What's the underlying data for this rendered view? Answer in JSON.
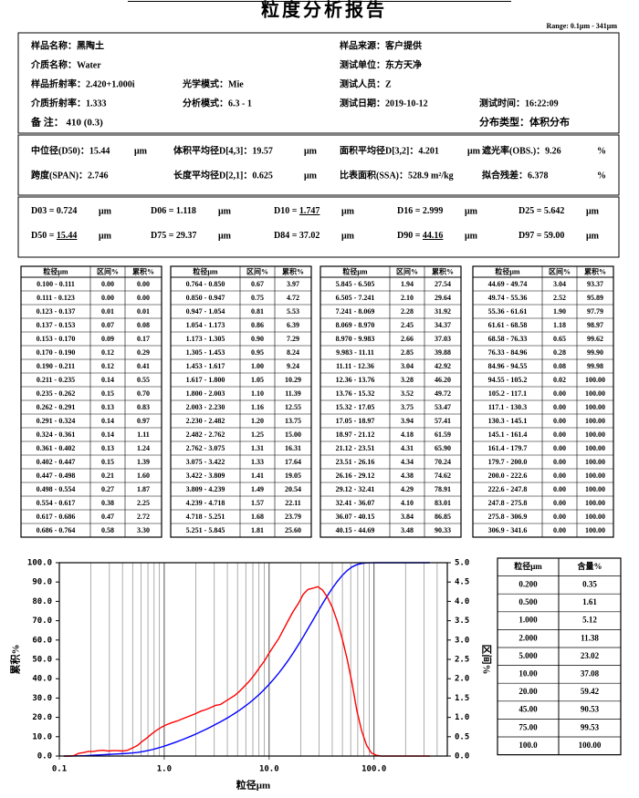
{
  "title": "粒度分析报告",
  "range": "Range: 0.1μm - 341μm",
  "info": {
    "rows": [
      [
        "样品名称：黑陶土",
        "样品来源：客户提供"
      ],
      [
        "介质名称：Water",
        "测试单位：东方天净"
      ],
      [
        "样品折射率：2.420+1.000i",
        "光学模式：Mie",
        "测试人员：Z"
      ],
      [
        "介质折射率：1.333",
        "分析模式：6.3 - 1",
        "测试日期：2019-10-12",
        "测试时间：16:22:09"
      ],
      [
        "备  注：  410 (0.3)",
        "分布类型：体积分布"
      ]
    ]
  },
  "stats": {
    "rows": [
      [
        {
          "text": "中位径(D50)：15.44",
          "unit": "μm"
        },
        {
          "text": "体积平均径D[4,3]：19.57",
          "unit": "μm"
        },
        {
          "text": "面积平均径D[3,2]：4.201",
          "unit": "μm"
        },
        {
          "text": "遮光率(OBS.)：9.26",
          "unit": "%"
        }
      ],
      [
        {
          "text": "跨度(SPAN)：2.746"
        },
        {
          "text": "长度平均径D[2,1]：0.625",
          "unit": "μm"
        },
        {
          "text": "比表面积(SSA)：528.9 m²/kg"
        },
        {
          "text": "拟合残差：6.378",
          "unit": "%"
        }
      ]
    ]
  },
  "d_values": {
    "rows": [
      [
        {
          "label": "D03 = ",
          "value": "0.724",
          "unit": "μm"
        },
        {
          "label": "D06 = ",
          "value": "1.118",
          "unit": "μm"
        },
        {
          "label": "D10 = ",
          "value": "1.747",
          "unit": "μm",
          "emphasis": true
        },
        {
          "label": "D16 = ",
          "value": "2.999",
          "unit": "μm"
        },
        {
          "label": "D25 = ",
          "value": "5.642",
          "unit": "μm"
        }
      ],
      [
        {
          "label": "D50 = ",
          "value": "15.44",
          "unit": "μm",
          "emphasis": true
        },
        {
          "label": "D75 = ",
          "value": "29.37",
          "unit": "μm"
        },
        {
          "label": "D84 = ",
          "value": "37.02",
          "unit": "μm"
        },
        {
          "label": "D90 = ",
          "value": "44.16",
          "unit": "μm",
          "emphasis": true
        },
        {
          "label": "D97 = ",
          "value": "59.00",
          "unit": "μm"
        }
      ]
    ]
  },
  "table": {
    "header": [
      "粒径μm",
      "区间%",
      "累积%"
    ],
    "groups": [
      [
        [
          "0.100 - 0.111",
          "0.00",
          "0.00"
        ],
        [
          "0.111 - 0.123",
          "0.00",
          "0.00"
        ],
        [
          "0.123 - 0.137",
          "0.01",
          "0.01"
        ],
        [
          "0.137 - 0.153",
          "0.07",
          "0.08"
        ],
        [
          "0.153 - 0.170",
          "0.09",
          "0.17"
        ],
        [
          "0.170 - 0.190",
          "0.12",
          "0.29"
        ],
        [
          "0.190 - 0.211",
          "0.12",
          "0.41"
        ],
        [
          "0.211 - 0.235",
          "0.14",
          "0.55"
        ],
        [
          "0.235 - 0.262",
          "0.15",
          "0.70"
        ],
        [
          "0.262 - 0.291",
          "0.13",
          "0.83"
        ],
        [
          "0.291 - 0.324",
          "0.14",
          "0.97"
        ],
        [
          "0.324 - 0.361",
          "0.14",
          "1.11"
        ],
        [
          "0.361 - 0.402",
          "0.13",
          "1.24"
        ],
        [
          "0.402 - 0.447",
          "0.15",
          "1.39"
        ],
        [
          "0.447 - 0.498",
          "0.21",
          "1.60"
        ],
        [
          "0.498 - 0.554",
          "0.27",
          "1.87"
        ],
        [
          "0.554 - 0.617",
          "0.38",
          "2.25"
        ],
        [
          "0.617 - 0.686",
          "0.47",
          "2.72"
        ],
        [
          "0.686 - 0.764",
          "0.58",
          "3.30"
        ]
      ],
      [
        [
          "0.764 - 0.850",
          "0.67",
          "3.97"
        ],
        [
          "0.850 - 0.947",
          "0.75",
          "4.72"
        ],
        [
          "0.947 - 1.054",
          "0.81",
          "5.53"
        ],
        [
          "1.054 - 1.173",
          "0.86",
          "6.39"
        ],
        [
          "1.173 - 1.305",
          "0.90",
          "7.29"
        ],
        [
          "1.305 - 1.453",
          "0.95",
          "8.24"
        ],
        [
          "1.453 - 1.617",
          "1.00",
          "9.24"
        ],
        [
          "1.617 - 1.800",
          "1.05",
          "10.29"
        ],
        [
          "1.800 - 2.003",
          "1.10",
          "11.39"
        ],
        [
          "2.003 - 2.230",
          "1.16",
          "12.55"
        ],
        [
          "2.230 - 2.482",
          "1.20",
          "13.75"
        ],
        [
          "2.482 - 2.762",
          "1.25",
          "15.00"
        ],
        [
          "2.762 - 3.075",
          "1.31",
          "16.31"
        ],
        [
          "3.075 - 3.422",
          "1.33",
          "17.64"
        ],
        [
          "3.422 - 3.809",
          "1.41",
          "19.05"
        ],
        [
          "3.809 - 4.239",
          "1.49",
          "20.54"
        ],
        [
          "4.239 - 4.718",
          "1.57",
          "22.11"
        ],
        [
          "4.718 - 5.251",
          "1.68",
          "23.79"
        ],
        [
          "5.251 - 5.845",
          "1.81",
          "25.60"
        ]
      ],
      [
        [
          "5.845 - 6.505",
          "1.94",
          "27.54"
        ],
        [
          "6.505 - 7.241",
          "2.10",
          "29.64"
        ],
        [
          "7.241 - 8.069",
          "2.28",
          "31.92"
        ],
        [
          "8.069 - 8.970",
          "2.45",
          "34.37"
        ],
        [
          "8.970 - 9.983",
          "2.66",
          "37.03"
        ],
        [
          "9.983 - 11.11",
          "2.85",
          "39.88"
        ],
        [
          "11.11 - 12.36",
          "3.04",
          "42.92"
        ],
        [
          "12.36 - 13.76",
          "3.28",
          "46.20"
        ],
        [
          "13.76 - 15.32",
          "3.52",
          "49.72"
        ],
        [
          "15.32 - 17.05",
          "3.75",
          "53.47"
        ],
        [
          "17.05 - 18.97",
          "3.94",
          "57.41"
        ],
        [
          "18.97 - 21.12",
          "4.18",
          "61.59"
        ],
        [
          "21.12 - 23.51",
          "4.31",
          "65.90"
        ],
        [
          "23.51 - 26.16",
          "4.34",
          "70.24"
        ],
        [
          "26.16 - 29.12",
          "4.38",
          "74.62"
        ],
        [
          "29.12 - 32.41",
          "4.29",
          "78.91"
        ],
        [
          "32.41 - 36.07",
          "4.10",
          "83.01"
        ],
        [
          "36.07 - 40.15",
          "3.84",
          "86.85"
        ],
        [
          "40.15 - 44.69",
          "3.48",
          "90.33"
        ]
      ],
      [
        [
          "44.69 - 49.74",
          "3.04",
          "93.37"
        ],
        [
          "49.74 - 55.36",
          "2.52",
          "95.89"
        ],
        [
          "55.36 - 61.61",
          "1.90",
          "97.79"
        ],
        [
          "61.61 - 68.58",
          "1.18",
          "98.97"
        ],
        [
          "68.58 - 76.33",
          "0.65",
          "99.62"
        ],
        [
          "76.33 - 84.96",
          "0.28",
          "99.90"
        ],
        [
          "84.96 - 94.55",
          "0.08",
          "99.98"
        ],
        [
          "94.55 - 105.2",
          "0.02",
          "100.00"
        ],
        [
          "105.2 - 117.1",
          "0.00",
          "100.00"
        ],
        [
          "117.1 - 130.3",
          "0.00",
          "100.00"
        ],
        [
          "130.3 - 145.1",
          "0.00",
          "100.00"
        ],
        [
          "145.1 - 161.4",
          "0.00",
          "100.00"
        ],
        [
          "161.4 - 179.7",
          "0.00",
          "100.00"
        ],
        [
          "179.7 - 200.0",
          "0.00",
          "100.00"
        ],
        [
          "200.0 - 222.6",
          "0.00",
          "100.00"
        ],
        [
          "222.6 - 247.8",
          "0.00",
          "100.00"
        ],
        [
          "247.8 - 275.8",
          "0.00",
          "100.00"
        ],
        [
          "275.8 - 306.9",
          "0.00",
          "100.00"
        ],
        [
          "306.9 - 341.6",
          "0.00",
          "100.00"
        ]
      ]
    ]
  },
  "summary_table": {
    "header": [
      "粒径μm",
      "含量%"
    ],
    "rows": [
      [
        "0.200",
        "0.35"
      ],
      [
        "0.500",
        "1.61"
      ],
      [
        "1.000",
        "5.12"
      ],
      [
        "2.000",
        "11.38"
      ],
      [
        "5.000",
        "23.02"
      ],
      [
        "10.00",
        "37.08"
      ],
      [
        "20.00",
        "59.42"
      ],
      [
        "45.00",
        "90.53"
      ],
      [
        "75.00",
        "99.53"
      ],
      [
        "100.0",
        "100.00"
      ]
    ]
  },
  "chart_data": {
    "type": "line",
    "x_label": "粒径μm",
    "y_label": "累积%",
    "y2_label": "区间%",
    "log_x": true,
    "xlim": [
      0.1,
      500
    ],
    "xticks": [
      0.1,
      {
        "value": 1,
        "label": "1.0"
      },
      {
        "value": 10,
        "label": "10.0"
      },
      {
        "value": 100,
        "label": "100.0"
      }
    ],
    "x_minor_ticks": [
      0.2,
      0.3,
      0.4,
      0.5,
      0.6,
      0.7,
      0.8,
      0.9,
      2,
      3,
      4,
      5,
      6,
      7,
      8,
      9,
      20,
      30,
      40,
      50,
      60,
      70,
      80,
      90,
      200,
      300,
      400
    ],
    "ylim": [
      0,
      100
    ],
    "yticks": [
      {
        "value": 0,
        "label": "0.0"
      },
      {
        "value": 10,
        "label": "10.0"
      },
      {
        "value": 20,
        "label": "20.0"
      },
      {
        "value": 30,
        "label": "30.0"
      },
      {
        "value": 40,
        "label": "40.0"
      },
      {
        "value": 50,
        "label": "50.0"
      },
      {
        "value": 60,
        "label": "60.0"
      },
      {
        "value": 70,
        "label": "70.0"
      },
      {
        "value": 80,
        "label": "80.0"
      },
      {
        "value": 90,
        "label": "90.0"
      },
      {
        "value": 100,
        "label": "100.0"
      }
    ],
    "y2lim": [
      0,
      5
    ],
    "y2ticks": [
      {
        "value": 0,
        "label": "0.0"
      },
      {
        "value": 0.5,
        "label": "0.5"
      },
      {
        "value": 1,
        "label": "1.0"
      },
      {
        "value": 1.5,
        "label": "1.5"
      },
      {
        "value": 2,
        "label": "2.0"
      },
      {
        "value": 2.5,
        "label": "2.5"
      },
      {
        "value": 3,
        "label": "3.0"
      },
      {
        "value": 3.5,
        "label": "3.5"
      },
      {
        "value": 4,
        "label": "4.0"
      },
      {
        "value": 4.5,
        "label": "4.5"
      },
      {
        "value": 5,
        "label": "5.0"
      }
    ],
    "x": [
      0.111,
      0.123,
      0.137,
      0.153,
      0.17,
      0.19,
      0.211,
      0.235,
      0.262,
      0.291,
      0.324,
      0.361,
      0.402,
      0.447,
      0.498,
      0.554,
      0.617,
      0.686,
      0.764,
      0.85,
      0.947,
      1.054,
      1.173,
      1.305,
      1.453,
      1.617,
      1.8,
      2.003,
      2.23,
      2.482,
      2.762,
      3.075,
      3.422,
      3.809,
      4.239,
      4.718,
      5.251,
      5.845,
      6.505,
      7.241,
      8.069,
      8.97,
      9.983,
      11.11,
      12.36,
      13.76,
      15.32,
      17.05,
      18.97,
      21.12,
      23.51,
      26.16,
      29.12,
      32.41,
      36.07,
      40.15,
      44.69,
      49.74,
      55.36,
      61.61,
      68.58,
      76.33,
      84.96,
      94.55,
      105.2,
      117.1,
      130.3,
      145.1,
      161.4,
      179.7,
      200.0,
      222.6,
      247.8,
      275.8,
      306.9,
      341.6
    ],
    "series": [
      {
        "color": "#0000ff",
        "values": [
          0,
          0,
          0.01,
          0.08,
          0.17,
          0.29,
          0.41,
          0.55,
          0.7,
          0.83,
          0.97,
          1.11,
          1.24,
          1.39,
          1.6,
          1.87,
          2.25,
          2.72,
          3.3,
          3.97,
          4.72,
          5.53,
          6.39,
          7.29,
          8.24,
          9.24,
          10.29,
          11.39,
          12.55,
          13.75,
          15.0,
          16.31,
          17.64,
          19.05,
          20.54,
          22.11,
          23.79,
          25.6,
          27.54,
          29.64,
          31.92,
          34.37,
          37.03,
          39.88,
          42.92,
          46.2,
          49.72,
          53.47,
          57.41,
          61.59,
          65.9,
          70.24,
          74.62,
          78.91,
          83.01,
          86.85,
          90.33,
          93.37,
          95.89,
          97.79,
          98.97,
          99.62,
          99.9,
          99.98,
          100,
          100,
          100,
          100,
          100,
          100,
          100,
          100,
          100,
          100,
          100,
          100
        ]
      },
      {
        "color": "#ff0000",
        "axis": "y2",
        "values": [
          0,
          0,
          0.01,
          0.07,
          0.09,
          0.12,
          0.12,
          0.14,
          0.15,
          0.13,
          0.14,
          0.14,
          0.13,
          0.15,
          0.21,
          0.27,
          0.38,
          0.47,
          0.58,
          0.67,
          0.75,
          0.81,
          0.86,
          0.9,
          0.95,
          1.0,
          1.05,
          1.1,
          1.16,
          1.2,
          1.25,
          1.31,
          1.33,
          1.41,
          1.49,
          1.57,
          1.68,
          1.81,
          1.94,
          2.1,
          2.28,
          2.45,
          2.66,
          2.85,
          3.04,
          3.28,
          3.52,
          3.75,
          3.94,
          4.18,
          4.31,
          4.34,
          4.38,
          4.29,
          4.1,
          3.84,
          3.48,
          3.04,
          2.52,
          1.9,
          1.18,
          0.65,
          0.28,
          0.08,
          0.02,
          0,
          0,
          0,
          0,
          0,
          0,
          0,
          0,
          0,
          0,
          0
        ]
      }
    ]
  }
}
